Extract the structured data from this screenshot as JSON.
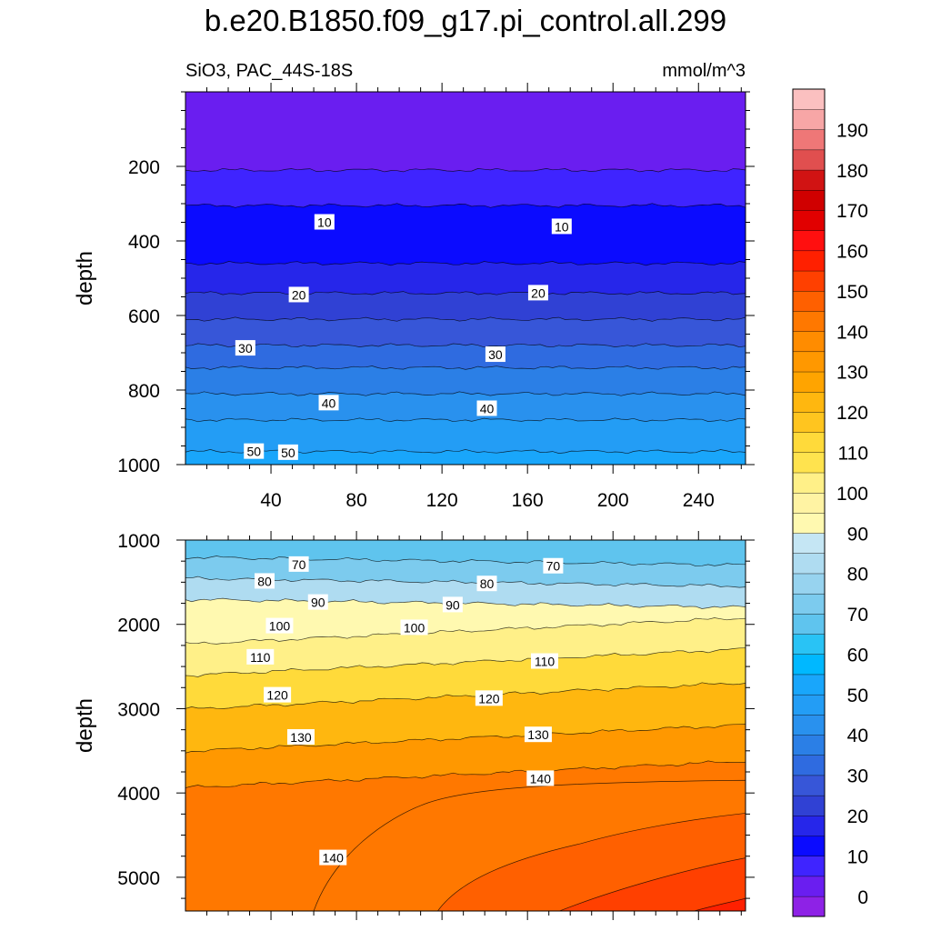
{
  "title": "b.e20.B1850.f09_g17.pi_control.all.299",
  "subtitle_left": "SiO3, PAC_44S-18S",
  "subtitle_right": "mmol/m^3",
  "chart_data": [
    {
      "type": "contour",
      "panel": "upper",
      "title": "SiO3, PAC_44S-18S",
      "units": "mmol/m^3",
      "xlabel": "",
      "ylabel": "depth",
      "xlim": [
        0,
        262
      ],
      "ylim": [
        1000,
        0
      ],
      "y_reversed": true,
      "xticks": [
        40,
        80,
        120,
        160,
        200,
        240
      ],
      "yticks": [
        200,
        400,
        600,
        800,
        1000
      ],
      "contour_interval": 5,
      "contours": [
        {
          "level": 5,
          "depth": 210
        },
        {
          "level": 10,
          "depth": 305
        },
        {
          "level": 15,
          "depth": 460
        },
        {
          "level": 20,
          "depth": 540
        },
        {
          "level": 25,
          "depth": 610
        },
        {
          "level": 30,
          "depth": 680
        },
        {
          "level": 35,
          "depth": 740
        },
        {
          "level": 40,
          "depth": 810
        },
        {
          "level": 45,
          "depth": 880
        },
        {
          "level": 50,
          "depth": 965
        }
      ],
      "contour_labels": [
        {
          "text": "10",
          "x": 65,
          "depth": 350
        },
        {
          "text": "10",
          "x": 176,
          "depth": 362
        },
        {
          "text": "20",
          "x": 53,
          "depth": 545
        },
        {
          "text": "20",
          "x": 165,
          "depth": 540
        },
        {
          "text": "30",
          "x": 28,
          "depth": 688
        },
        {
          "text": "30",
          "x": 145,
          "depth": 705
        },
        {
          "text": "40",
          "x": 67,
          "depth": 835
        },
        {
          "text": "40",
          "x": 141,
          "depth": 850
        },
        {
          "text": "50",
          "x": 32,
          "depth": 965
        },
        {
          "text": "50",
          "x": 48,
          "depth": 968
        }
      ]
    },
    {
      "type": "contour",
      "panel": "lower",
      "xlabel": "",
      "ylabel": "depth",
      "xlim": [
        0,
        262
      ],
      "ylim": [
        5400,
        1000
      ],
      "y_reversed": true,
      "yticks": [
        1000,
        2000,
        3000,
        4000,
        5000
      ],
      "contour_interval": 5,
      "contours": [
        {
          "level": 70,
          "depth": 1250
        },
        {
          "level": 80,
          "depth": 1500
        },
        {
          "level": 90,
          "depth": 1750
        },
        {
          "level": 100,
          "depth": 2080
        },
        {
          "level": 110,
          "depth": 2450
        },
        {
          "level": 120,
          "depth": 2850
        },
        {
          "level": 130,
          "depth": 3350
        },
        {
          "level": 140,
          "depth": 3780
        }
      ],
      "contour_labels": [
        {
          "text": "70",
          "x": 53,
          "depth": 1290
        },
        {
          "text": "70",
          "x": 172,
          "depth": 1310
        },
        {
          "text": "80",
          "x": 37,
          "depth": 1490
        },
        {
          "text": "80",
          "x": 141,
          "depth": 1520
        },
        {
          "text": "90",
          "x": 62,
          "depth": 1740
        },
        {
          "text": "90",
          "x": 125,
          "depth": 1770
        },
        {
          "text": "100",
          "x": 44,
          "depth": 2020
        },
        {
          "text": "100",
          "x": 107,
          "depth": 2040
        },
        {
          "text": "110",
          "x": 35,
          "depth": 2390
        },
        {
          "text": "110",
          "x": 168,
          "depth": 2440
        },
        {
          "text": "120",
          "x": 43,
          "depth": 2840
        },
        {
          "text": "120",
          "x": 142,
          "depth": 2880
        },
        {
          "text": "130",
          "x": 54,
          "depth": 3340
        },
        {
          "text": "130",
          "x": 165,
          "depth": 3310
        },
        {
          "text": "140",
          "x": 69,
          "depth": 4770
        },
        {
          "text": "140",
          "x": 166,
          "depth": 3830
        }
      ]
    }
  ],
  "colorbar": {
    "levels": [
      0,
      10,
      20,
      30,
      40,
      50,
      60,
      70,
      80,
      90,
      100,
      110,
      120,
      130,
      140,
      150,
      160,
      170,
      180,
      190
    ],
    "level_labels": [
      "0",
      "10",
      "20",
      "30",
      "40",
      "50",
      "60",
      "70",
      "80",
      "90",
      "100",
      "110",
      "120",
      "130",
      "140",
      "150",
      "160",
      "170",
      "180",
      "190"
    ],
    "colors": [
      "#8e22e6",
      "#6a1ef0",
      "#3f24ff",
      "#0b0bff",
      "#2626ea",
      "#3041d4",
      "#3756d8",
      "#2f6be0",
      "#2b7fe6",
      "#2991ee",
      "#239df5",
      "#19a6fb",
      "#00b8ff",
      "#29c3f5",
      "#5fc4ee",
      "#7ccbee",
      "#97d3ef",
      "#afdcf1",
      "#c5e6f4",
      "#fff9b0",
      "#fff3a3",
      "#fff088",
      "#ffe34e",
      "#ffda3a",
      "#ffc51f",
      "#ffb70f",
      "#ffa400",
      "#ff9800",
      "#ff8c00",
      "#ff7800",
      "#ff6000",
      "#ff4000",
      "#ff2000",
      "#ff0f0f",
      "#e10000",
      "#d00000",
      "#d11313",
      "#e04f4f",
      "#ef7777",
      "#f7a6a6",
      "#fbc0c0"
    ]
  }
}
